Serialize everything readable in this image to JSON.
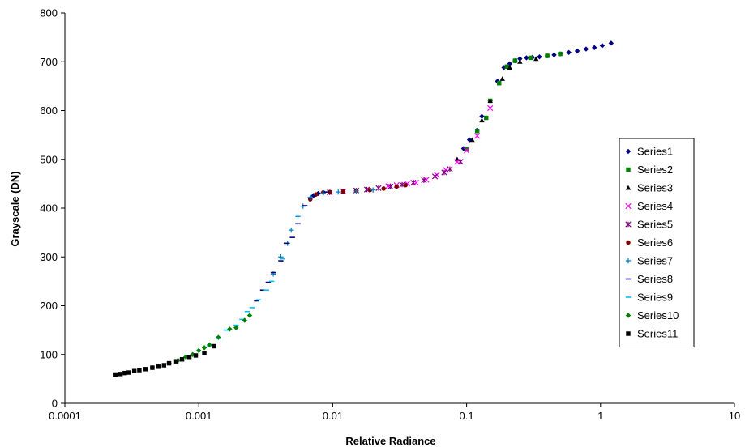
{
  "chart_data": {
    "type": "scatter",
    "xlabel": "Relative Radiance",
    "ylabel": "Grayscale (DN)",
    "xscale": "log",
    "xlim": [
      0.0001,
      10
    ],
    "ylim": [
      0,
      800
    ],
    "grid": false,
    "legend_position": "right",
    "x_tick_labels": [
      "0.0001",
      "0.001",
      "0.01",
      "0.1",
      "1",
      "10"
    ],
    "y_tick_labels": [
      "0",
      "100",
      "200",
      "300",
      "400",
      "500",
      "600",
      "700",
      "800"
    ],
    "series": [
      {
        "name": "Series1",
        "marker": "diamond",
        "color": "#000080",
        "points": [
          [
            0.0068,
            420
          ],
          [
            0.0072,
            426
          ],
          [
            0.0078,
            430
          ],
          [
            0.0085,
            432
          ],
          [
            0.095,
            522
          ],
          [
            0.105,
            540
          ],
          [
            0.12,
            560
          ],
          [
            0.13,
            588
          ],
          [
            0.15,
            620
          ],
          [
            0.17,
            660
          ],
          [
            0.19,
            688
          ],
          [
            0.21,
            696
          ],
          [
            0.23,
            702
          ],
          [
            0.25,
            706
          ],
          [
            0.28,
            708
          ],
          [
            0.31,
            709
          ],
          [
            0.35,
            710
          ],
          [
            0.4,
            712
          ],
          [
            0.45,
            714
          ],
          [
            0.5,
            716
          ],
          [
            0.58,
            719
          ],
          [
            0.67,
            722
          ],
          [
            0.78,
            726
          ],
          [
            0.9,
            729
          ],
          [
            1.03,
            733
          ],
          [
            1.2,
            738
          ]
        ]
      },
      {
        "name": "Series2",
        "marker": "square",
        "color": "#008000",
        "points": [
          [
            0.1,
            520
          ],
          [
            0.12,
            558
          ],
          [
            0.14,
            585
          ],
          [
            0.15,
            620
          ],
          [
            0.175,
            656
          ],
          [
            0.2,
            690
          ],
          [
            0.23,
            702
          ],
          [
            0.3,
            708
          ],
          [
            0.4,
            712
          ],
          [
            0.5,
            716
          ]
        ]
      },
      {
        "name": "Series3",
        "marker": "triangle",
        "color": "#000000",
        "points": [
          [
            0.085,
            500
          ],
          [
            0.11,
            540
          ],
          [
            0.13,
            580
          ],
          [
            0.15,
            620
          ],
          [
            0.185,
            665
          ],
          [
            0.21,
            688
          ],
          [
            0.25,
            700
          ],
          [
            0.33,
            706
          ]
        ]
      },
      {
        "name": "Series4",
        "marker": "x",
        "color": "#ff00ff",
        "points": [
          [
            0.026,
            445
          ],
          [
            0.03,
            447
          ],
          [
            0.036,
            450
          ],
          [
            0.042,
            452
          ],
          [
            0.05,
            458
          ],
          [
            0.06,
            468
          ],
          [
            0.07,
            478
          ],
          [
            0.085,
            495
          ],
          [
            0.1,
            518
          ],
          [
            0.12,
            548
          ],
          [
            0.15,
            605
          ]
        ]
      },
      {
        "name": "Series5",
        "marker": "star",
        "color": "#800080",
        "points": [
          [
            0.0095,
            432
          ],
          [
            0.012,
            434
          ],
          [
            0.015,
            436
          ],
          [
            0.018,
            438
          ],
          [
            0.022,
            441
          ],
          [
            0.027,
            444
          ],
          [
            0.033,
            448
          ],
          [
            0.04,
            452
          ],
          [
            0.048,
            457
          ],
          [
            0.058,
            465
          ],
          [
            0.068,
            473
          ],
          [
            0.075,
            480
          ],
          [
            0.09,
            495
          ]
        ]
      },
      {
        "name": "Series6",
        "marker": "circle",
        "color": "#800000",
        "points": [
          [
            0.0068,
            418
          ],
          [
            0.0075,
            428
          ],
          [
            0.0085,
            432
          ],
          [
            0.0095,
            433
          ],
          [
            0.012,
            434
          ],
          [
            0.015,
            436
          ],
          [
            0.019,
            437
          ],
          [
            0.024,
            440
          ],
          [
            0.03,
            444
          ],
          [
            0.035,
            447
          ]
        ]
      },
      {
        "name": "Series7",
        "marker": "plus",
        "color": "#0080c0",
        "points": [
          [
            0.0036,
            265
          ],
          [
            0.0041,
            300
          ],
          [
            0.0046,
            328
          ],
          [
            0.0049,
            355
          ],
          [
            0.0055,
            383
          ],
          [
            0.006,
            404
          ],
          [
            0.0068,
            422
          ],
          [
            0.0085,
            431
          ],
          [
            0.011,
            433
          ],
          [
            0.015,
            435
          ],
          [
            0.02,
            437
          ]
        ]
      },
      {
        "name": "Series8",
        "marker": "dash",
        "color": "#000080",
        "points": [
          [
            0.0027,
            210
          ],
          [
            0.003,
            232
          ],
          [
            0.0033,
            248
          ],
          [
            0.0036,
            268
          ],
          [
            0.0041,
            292
          ],
          [
            0.0045,
            328
          ],
          [
            0.005,
            340
          ],
          [
            0.0055,
            368
          ],
          [
            0.0062,
            405
          ],
          [
            0.0072,
            425
          ],
          [
            0.009,
            433
          ]
        ]
      },
      {
        "name": "Series9",
        "marker": "dash",
        "color": "#00bfff",
        "points": [
          [
            0.0012,
            118
          ],
          [
            0.0014,
            133
          ],
          [
            0.0016,
            150
          ],
          [
            0.0019,
            160
          ],
          [
            0.0021,
            172
          ],
          [
            0.0023,
            188
          ],
          [
            0.0025,
            196
          ],
          [
            0.0028,
            212
          ],
          [
            0.0032,
            232
          ],
          [
            0.0035,
            250
          ],
          [
            0.0042,
            296
          ]
        ]
      },
      {
        "name": "Series10",
        "marker": "diamond",
        "color": "#008000",
        "points": [
          [
            0.00045,
            73
          ],
          [
            0.0005,
            76
          ],
          [
            0.0006,
            82
          ],
          [
            0.0007,
            88
          ],
          [
            0.0008,
            95
          ],
          [
            0.0009,
            100
          ],
          [
            0.001,
            108
          ],
          [
            0.0011,
            114
          ],
          [
            0.0012,
            120
          ],
          [
            0.0014,
            135
          ],
          [
            0.0017,
            152
          ],
          [
            0.0019,
            155
          ],
          [
            0.0022,
            170
          ],
          [
            0.0024,
            180
          ]
        ]
      },
      {
        "name": "Series11",
        "marker": "square",
        "color": "#000000",
        "points": [
          [
            0.00024,
            59
          ],
          [
            0.00026,
            60
          ],
          [
            0.00028,
            62
          ],
          [
            0.0003,
            63
          ],
          [
            0.00033,
            66
          ],
          [
            0.00036,
            68
          ],
          [
            0.0004,
            70
          ],
          [
            0.00045,
            73
          ],
          [
            0.0005,
            75
          ],
          [
            0.00055,
            78
          ],
          [
            0.0006,
            82
          ],
          [
            0.00068,
            86
          ],
          [
            0.00075,
            90
          ],
          [
            0.00085,
            95
          ],
          [
            0.00095,
            98
          ],
          [
            0.0011,
            103
          ],
          [
            0.0013,
            117
          ]
        ]
      }
    ]
  }
}
